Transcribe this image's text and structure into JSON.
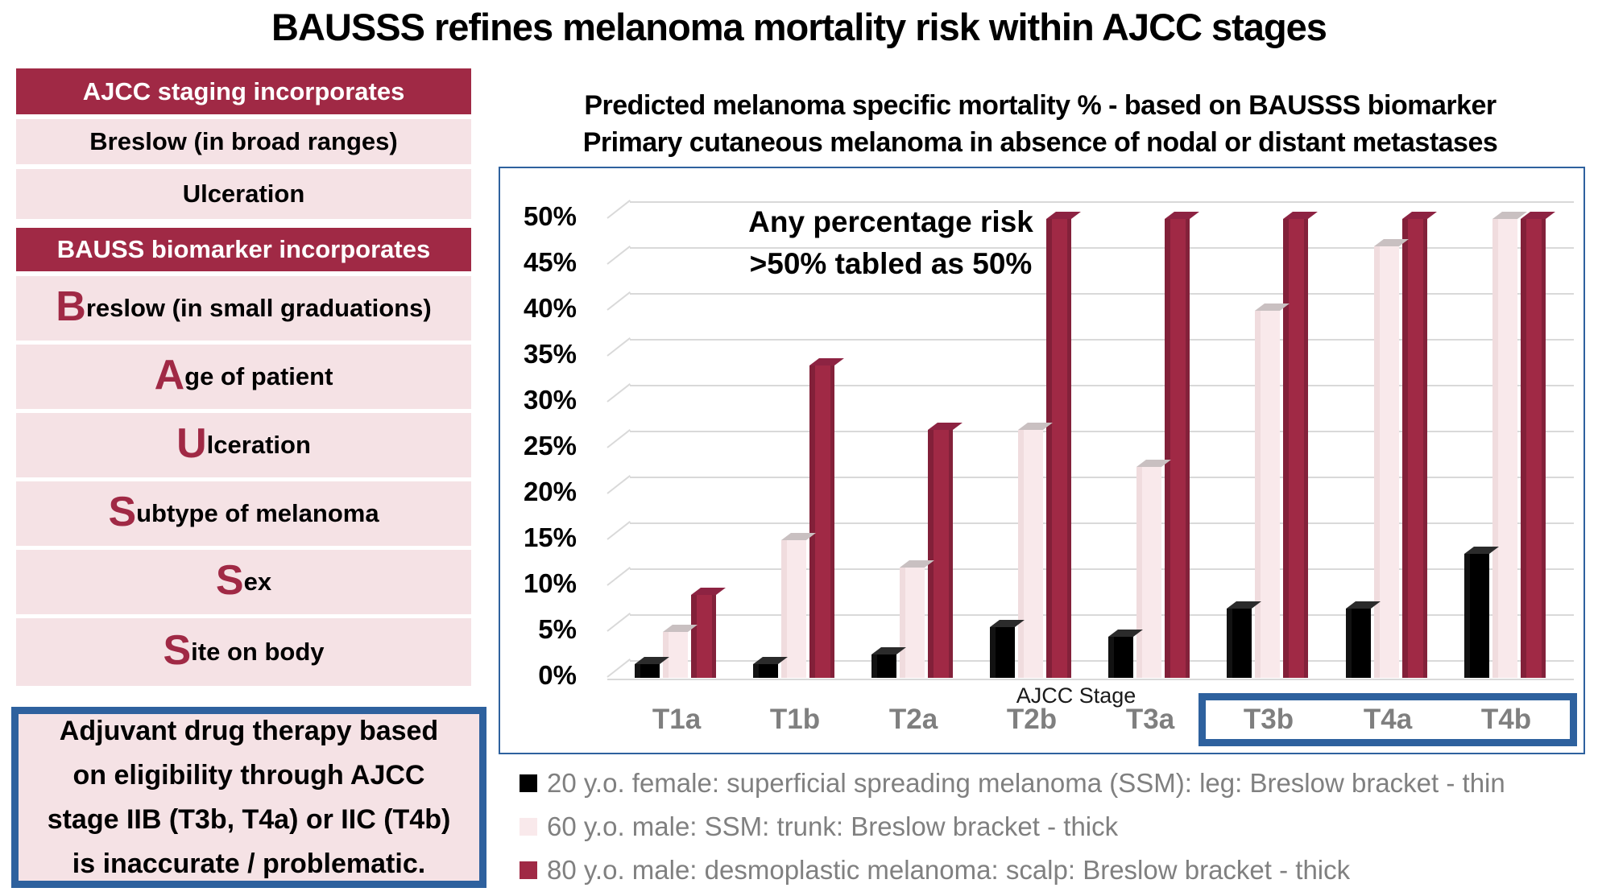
{
  "title": "BAUSSS refines melanoma mortality risk within AJCC stages",
  "left_panel": {
    "sections": [
      {
        "type": "header",
        "label": "AJCC staging incorporates"
      },
      {
        "type": "item",
        "lead": "",
        "text": "Breslow (in broad ranges)"
      },
      {
        "type": "item",
        "lead": "",
        "text": "Ulceration"
      },
      {
        "type": "header",
        "label": "BAUSS biomarker incorporates"
      },
      {
        "type": "item",
        "lead": "B",
        "text": "reslow (in small graduations)"
      },
      {
        "type": "item",
        "lead": "A",
        "text": "ge of patient"
      },
      {
        "type": "item",
        "lead": "U",
        "text": "lceration"
      },
      {
        "type": "item",
        "lead": "S",
        "text": "ubtype of melanoma"
      },
      {
        "type": "item",
        "lead": "S",
        "text": "ex"
      },
      {
        "type": "item",
        "lead": "S",
        "text": "ite on body"
      }
    ]
  },
  "note_box": {
    "lines": [
      "Adjuvant drug therapy based",
      "on eligibility through AJCC",
      "stage IIB (T3b, T4a) or IIC (T4b)",
      "is inaccurate / problematic."
    ]
  },
  "chart_header": {
    "line1": "Predicted melanoma specific mortality %  - based on BAUSSS biomarker",
    "line2": "Primary cutaneous melanoma in absence of nodal or distant metastases"
  },
  "chart_data": {
    "type": "bar",
    "title": "Predicted melanoma specific mortality % - based on BAUSSS biomarker",
    "subtitle": "Primary cutaneous melanoma in absence of nodal or distant metastases",
    "categories": [
      "T1a",
      "T1b",
      "T2a",
      "T2b",
      "T3a",
      "T3b",
      "T4a",
      "T4b"
    ],
    "series": [
      {
        "name": "20 y.o. female: superficial spreading melanoma (SSM): leg: Breslow bracket - thin",
        "color": "#000000",
        "top_color": "#2b2b2b",
        "side_color": "#151515",
        "values": [
          1.5,
          1.5,
          2.5,
          5.5,
          4.5,
          7.5,
          7.5,
          13.5
        ]
      },
      {
        "name": "60 y.o. male: SSM: trunk: Breslow bracket - thick",
        "color": "#f9e9eb",
        "top_color": "#c9c0c1",
        "side_color": "#eed9dc",
        "values": [
          5,
          15,
          12,
          27,
          23,
          40,
          47,
          50
        ]
      },
      {
        "name": "80 y.o. male: desmoplastic melanoma: scalp: Breslow bracket - thick",
        "color": "#a02945",
        "top_color": "#8d2342",
        "side_color": "#7c1f37",
        "values": [
          9,
          34,
          27,
          50,
          50,
          50,
          50,
          50
        ]
      }
    ],
    "ylim": [
      0,
      50
    ],
    "ytick_step": 5,
    "ytick_suffix": "%",
    "xlabel": "AJCC Stage",
    "annotation": [
      "Any percentage risk",
      ">50% tabled as 50%"
    ],
    "grid": true,
    "legend_position": "bottom",
    "highlight_box_categories": [
      "T3b",
      "T4a",
      "T4b"
    ]
  },
  "colors": {
    "maroon": "#a02945",
    "panel_pink": "#f5e2e5",
    "bar_pink": "#f9e9eb",
    "blue": "#2e619e",
    "grey_text": "#808080",
    "gridline": "#d9d9d9",
    "black": "#000000"
  }
}
